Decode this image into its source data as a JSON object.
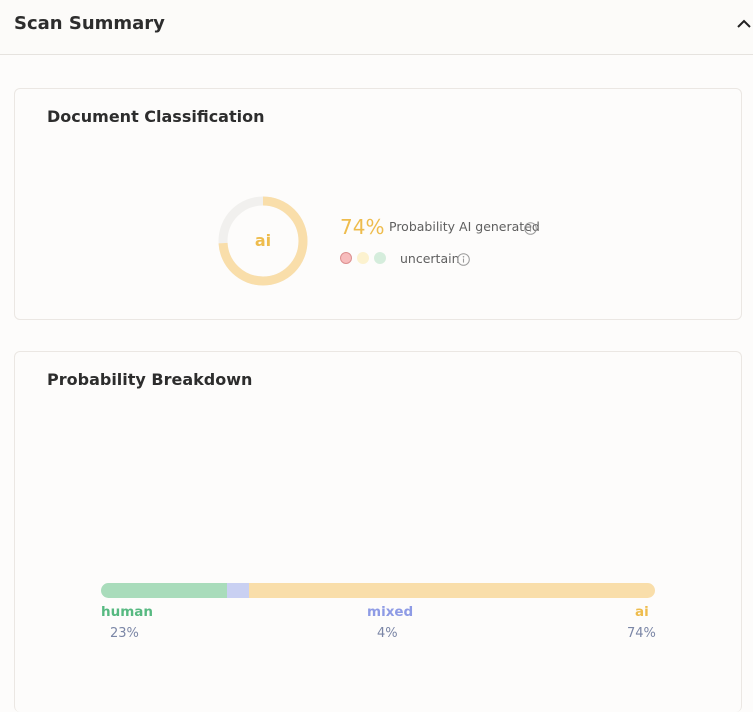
{
  "header": {
    "title": "Scan Summary"
  },
  "classification": {
    "title": "Document Classification",
    "donut_label": "ai",
    "ai_fraction": 0.74,
    "prob_pct": "74%",
    "prob_text": "Probability AI generated",
    "certainty": "uncertain"
  },
  "breakdown": {
    "title": "Probability Breakdown",
    "items": [
      {
        "label": "human",
        "value": "23%",
        "fraction": 0.23,
        "color": "#a9dcbb",
        "text_color": "#57b981"
      },
      {
        "label": "mixed",
        "value": "4%",
        "fraction": 0.04,
        "color": "#c9d0f2",
        "text_color": "#8e9be5"
      },
      {
        "label": "ai",
        "value": "74%",
        "fraction": 0.74,
        "color": "#f9deaa",
        "text_color": "#eebc4d"
      }
    ]
  },
  "colors": {
    "accent_ai": "#eebc4d",
    "donut_track": "#f1f0ee",
    "donut_fill": "#f9deaa"
  },
  "icons": {
    "collapse": "chevron-up-icon",
    "info": "info-icon"
  }
}
